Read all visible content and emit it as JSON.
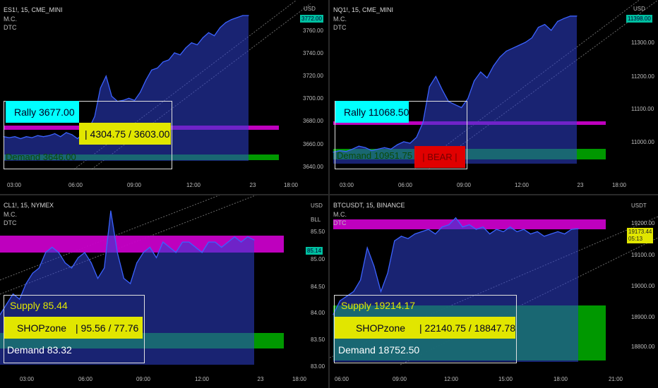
{
  "colors": {
    "area_fill": "#2d3fd0",
    "line": "#3b62ff",
    "magenta": "#c800c8",
    "green": "#00a000",
    "cyan": "#00ffff",
    "yellow": "#e1e600",
    "red": "#e00000",
    "white": "#ffffff"
  },
  "panes": [
    {
      "symbol": "ES1!, 15, CME_MINI",
      "indicators": [
        "M.C.",
        "DTC"
      ],
      "currency": "USD",
      "y_ticks": [
        "3760.00",
        "3740.00",
        "3720.00",
        "3700.00",
        "3680.00",
        "3660.00",
        "3640.00"
      ],
      "x_ticks": [
        "03:00",
        "06:00",
        "09:00",
        "12:00",
        "23",
        "18:00"
      ],
      "price_tag": "3772.00",
      "rally": "Rally  3677.00",
      "range": "|  4304.75 / 3603.00",
      "demand": "Demand  3646.00"
    },
    {
      "symbol": "NQ1!, 15, CME_MINI",
      "indicators": [
        "M.C.",
        "DTC"
      ],
      "currency": "USD",
      "y_ticks": [
        "11300.00",
        "11200.00",
        "11100.00",
        "11000.00"
      ],
      "x_ticks": [
        "03:00",
        "06:00",
        "09:00",
        "12:00",
        "23",
        "18:00"
      ],
      "price_tag": "11398.00",
      "rally": "Rally  11068.50",
      "demand": "Demand  10951.75",
      "bear": "|  BEAR  |"
    },
    {
      "symbol": "CL1!, 15, NYMEX",
      "indicators": [
        "M.C.",
        "DTC"
      ],
      "currency": "USD",
      "unit": "BLL",
      "y_ticks": [
        "85.50",
        "85.00",
        "84.50",
        "84.00",
        "83.50",
        "83.00"
      ],
      "x_ticks": [
        "03:00",
        "06:00",
        "09:00",
        "12:00",
        "23",
        "18:00"
      ],
      "price_tag": "85.14",
      "supply": "Supply  85.44",
      "shopzone": "SHOPzone",
      "range": "|  95.56 / 77.76",
      "demand": "Demand  83.32"
    },
    {
      "symbol": "BTCUSDT, 15, BINANCE",
      "indicators": [
        "M.C.",
        "DTC"
      ],
      "currency": "USDT",
      "y_ticks": [
        "19200.00",
        "19100.00",
        "19000.00",
        "18900.00",
        "18800.00"
      ],
      "x_ticks": [
        "06:00",
        "09:00",
        "12:00",
        "15:00",
        "18:00",
        "21:00"
      ],
      "price_tag": "19173.44",
      "price_tag2": "05:13",
      "supply": "Supply  19214.17",
      "shopzone": "SHOPzone",
      "range": "|  22140.75 / 18847.78",
      "demand": "Demand  18752.50"
    }
  ],
  "chart_data": [
    {
      "type": "area",
      "title": "ES1!, 15, CME_MINI",
      "ylim": [
        3635,
        3772
      ],
      "x": [
        0,
        1,
        2,
        3,
        4,
        5,
        6,
        7,
        8,
        9,
        10,
        11,
        12,
        13,
        14,
        15,
        16,
        17,
        18,
        19,
        20,
        21,
        22,
        23,
        24,
        25,
        26,
        27,
        28,
        29,
        30,
        31,
        32,
        33,
        34,
        35,
        36,
        37,
        38,
        39,
        40,
        41,
        42,
        43
      ],
      "values": [
        3652,
        3651,
        3652,
        3650,
        3652,
        3651,
        3653,
        3652,
        3653,
        3655,
        3652,
        3656,
        3654,
        3650,
        3655,
        3660,
        3672,
        3700,
        3712,
        3692,
        3687,
        3688,
        3690,
        3688,
        3696,
        3708,
        3718,
        3720,
        3726,
        3728,
        3735,
        3733,
        3740,
        3745,
        3743,
        3750,
        3755,
        3752,
        3760,
        3765,
        3768,
        3770,
        3772,
        3772
      ]
    },
    {
      "type": "area",
      "title": "NQ1!, 15, CME_MINI",
      "ylim": [
        10920,
        11400
      ],
      "values": [
        10940,
        10945,
        10942,
        10950,
        10960,
        10955,
        10945,
        10950,
        10955,
        10950,
        10965,
        10975,
        10970,
        10990,
        11040,
        11160,
        11195,
        11150,
        11110,
        11100,
        11090,
        11120,
        11180,
        11210,
        11190,
        11230,
        11260,
        11280,
        11290,
        11300,
        11310,
        11325,
        11360,
        11370,
        11350,
        11380,
        11390,
        11398,
        11398
      ]
    },
    {
      "type": "area",
      "title": "CL1!, 15, NYMEX",
      "ylim": [
        82.9,
        85.7
      ],
      "values": [
        83.7,
        83.9,
        84.1,
        84.0,
        84.3,
        84.5,
        84.6,
        84.9,
        85.0,
        84.9,
        84.7,
        84.6,
        84.8,
        84.9,
        84.7,
        84.4,
        84.6,
        85.7,
        84.9,
        84.4,
        84.3,
        84.7,
        84.9,
        85.0,
        84.8,
        85.1,
        85.0,
        84.9,
        85.1,
        85.1,
        85.0,
        84.9,
        85.1,
        85.1,
        85.0,
        85.1,
        85.2,
        85.1,
        85.2,
        85.14
      ]
    },
    {
      "type": "area",
      "title": "BTCUSDT, 15, BINANCE",
      "ylim": [
        18720,
        19250
      ],
      "values": [
        18800,
        18860,
        18880,
        18900,
        18950,
        19090,
        19010,
        18900,
        18980,
        19120,
        19140,
        19130,
        19150,
        19160,
        19170,
        19150,
        19180,
        19190,
        19220,
        19180,
        19190,
        19170,
        19180,
        19150,
        19170,
        19160,
        19180,
        19160,
        19170,
        19150,
        19160,
        19140,
        19150,
        19160,
        19150,
        19170,
        19173
      ]
    }
  ]
}
